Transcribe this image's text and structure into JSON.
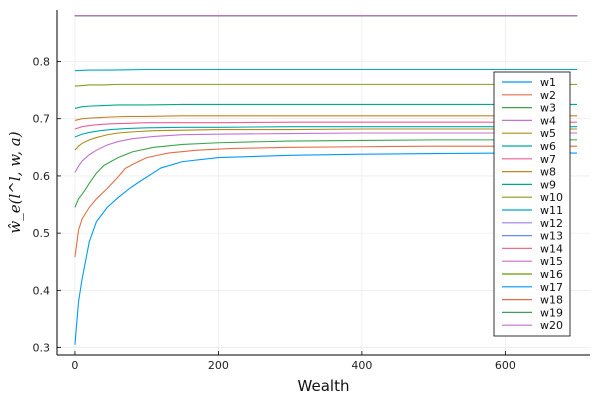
{
  "chart_data": {
    "type": "line",
    "title": "",
    "xlabel": "Wealth",
    "ylabel": "ŵ_e(l^l, w, a)",
    "xlim": [
      -25,
      718
    ],
    "ylim": [
      0.287,
      0.89
    ],
    "xticks": [
      0,
      200,
      400,
      600
    ],
    "yticks": [
      0.3,
      0.4,
      0.5,
      0.6,
      0.7,
      0.8
    ],
    "grid": true,
    "legend_position": "right",
    "colors": [
      "#009AFA",
      "#E36F47",
      "#3EA44E",
      "#C371D2",
      "#AC8E18",
      "#00A9AD",
      "#ED5E93",
      "#C68225",
      "#00A98D",
      "#8E971E",
      "#00A8CB",
      "#9B7FE9",
      "#618DF6",
      "#F16C8C",
      "#CD6BD1",
      "#6B9700",
      "#0098FF",
      "#E66A44",
      "#3B9F5B",
      "#C46FD1"
    ],
    "series": [
      {
        "name": "w1",
        "x": [
          0,
          5,
          10,
          20,
          30,
          45,
          60,
          75,
          90,
          105,
          120,
          150,
          200,
          300,
          400,
          500,
          600,
          700
        ],
        "y": [
          0.305,
          0.38,
          0.42,
          0.485,
          0.52,
          0.545,
          0.562,
          0.577,
          0.59,
          0.602,
          0.614,
          0.625,
          0.632,
          0.636,
          0.638,
          0.639,
          0.64,
          0.64
        ]
      },
      {
        "name": "w2",
        "x": [
          0,
          5,
          10,
          20,
          30,
          45,
          60,
          70,
          80,
          100,
          130,
          170,
          220,
          300,
          400,
          500,
          600,
          700
        ],
        "y": [
          0.458,
          0.505,
          0.525,
          0.545,
          0.56,
          0.578,
          0.598,
          0.613,
          0.62,
          0.632,
          0.64,
          0.645,
          0.648,
          0.65,
          0.651,
          0.652,
          0.652,
          0.652
        ]
      },
      {
        "name": "w3",
        "x": [
          0,
          5,
          10,
          15,
          20,
          30,
          40,
          60,
          80,
          110,
          150,
          200,
          300,
          400,
          500,
          600,
          700
        ],
        "y": [
          0.545,
          0.56,
          0.568,
          0.577,
          0.587,
          0.605,
          0.618,
          0.632,
          0.642,
          0.65,
          0.655,
          0.658,
          0.661,
          0.662,
          0.663,
          0.663,
          0.663
        ]
      },
      {
        "name": "w4",
        "x": [
          0,
          5,
          10,
          20,
          30,
          45,
          60,
          80,
          110,
          150,
          200,
          300,
          400,
          500,
          600,
          700
        ],
        "y": [
          0.606,
          0.617,
          0.626,
          0.637,
          0.645,
          0.654,
          0.66,
          0.665,
          0.669,
          0.672,
          0.673,
          0.674,
          0.675,
          0.675,
          0.675,
          0.675
        ]
      },
      {
        "name": "w5",
        "x": [
          0,
          5,
          10,
          20,
          30,
          45,
          60,
          80,
          110,
          150,
          200,
          300,
          400,
          500,
          600,
          700
        ],
        "y": [
          0.645,
          0.652,
          0.657,
          0.663,
          0.667,
          0.672,
          0.675,
          0.677,
          0.679,
          0.68,
          0.681,
          0.681,
          0.682,
          0.682,
          0.682,
          0.682
        ]
      },
      {
        "name": "w6",
        "x": [
          0,
          10,
          20,
          35,
          50,
          75,
          100,
          150,
          200,
          300,
          400,
          500,
          600,
          700
        ],
        "y": [
          0.668,
          0.673,
          0.676,
          0.679,
          0.681,
          0.683,
          0.684,
          0.685,
          0.685,
          0.686,
          0.686,
          0.686,
          0.686,
          0.686
        ]
      },
      {
        "name": "w7",
        "x": [
          0,
          10,
          20,
          35,
          50,
          75,
          100,
          150,
          200,
          300,
          400,
          500,
          600,
          700
        ],
        "y": [
          0.682,
          0.686,
          0.688,
          0.69,
          0.691,
          0.692,
          0.693,
          0.693,
          0.693,
          0.694,
          0.694,
          0.694,
          0.694,
          0.694
        ]
      },
      {
        "name": "w8",
        "x": [
          0,
          10,
          20,
          35,
          50,
          75,
          100,
          150,
          200,
          300,
          400,
          500,
          600,
          700
        ],
        "y": [
          0.697,
          0.7,
          0.701,
          0.702,
          0.703,
          0.704,
          0.704,
          0.705,
          0.705,
          0.705,
          0.705,
          0.705,
          0.705,
          0.705
        ]
      },
      {
        "name": "w9",
        "x": [
          0,
          10,
          20,
          40,
          60,
          100,
          150,
          200,
          300,
          400,
          500,
          600,
          700
        ],
        "y": [
          0.718,
          0.721,
          0.722,
          0.723,
          0.724,
          0.724,
          0.725,
          0.725,
          0.725,
          0.725,
          0.725,
          0.725,
          0.725
        ]
      },
      {
        "name": "w10",
        "x": [
          0,
          10,
          20,
          40,
          60,
          100,
          150,
          200,
          300,
          400,
          500,
          600,
          700
        ],
        "y": [
          0.757,
          0.758,
          0.759,
          0.759,
          0.76,
          0.76,
          0.76,
          0.76,
          0.76,
          0.76,
          0.76,
          0.76,
          0.76
        ]
      },
      {
        "name": "w11",
        "x": [
          0,
          20,
          50,
          100,
          200,
          300,
          400,
          500,
          600,
          700
        ],
        "y": [
          0.784,
          0.785,
          0.785,
          0.786,
          0.786,
          0.786,
          0.786,
          0.786,
          0.786,
          0.786
        ]
      },
      {
        "name": "w12",
        "x": [
          0,
          700
        ],
        "y": [
          0.88,
          0.88
        ]
      },
      {
        "name": "w13",
        "x": [
          0,
          700
        ],
        "y": [
          0.88,
          0.88
        ]
      },
      {
        "name": "w14",
        "x": [
          0,
          700
        ],
        "y": [
          0.88,
          0.88
        ]
      },
      {
        "name": "w15",
        "x": [
          0,
          700
        ],
        "y": [
          0.88,
          0.88
        ]
      },
      {
        "name": "w16",
        "x": [
          0,
          700
        ],
        "y": [
          0.88,
          0.88
        ]
      },
      {
        "name": "w17",
        "x": [
          0,
          700
        ],
        "y": [
          0.88,
          0.88
        ]
      },
      {
        "name": "w18",
        "x": [
          0,
          700
        ],
        "y": [
          0.88,
          0.88
        ]
      },
      {
        "name": "w19",
        "x": [
          0,
          700
        ],
        "y": [
          0.88,
          0.88
        ]
      },
      {
        "name": "w20",
        "x": [
          0,
          700
        ],
        "y": [
          0.88,
          0.88
        ]
      }
    ]
  }
}
